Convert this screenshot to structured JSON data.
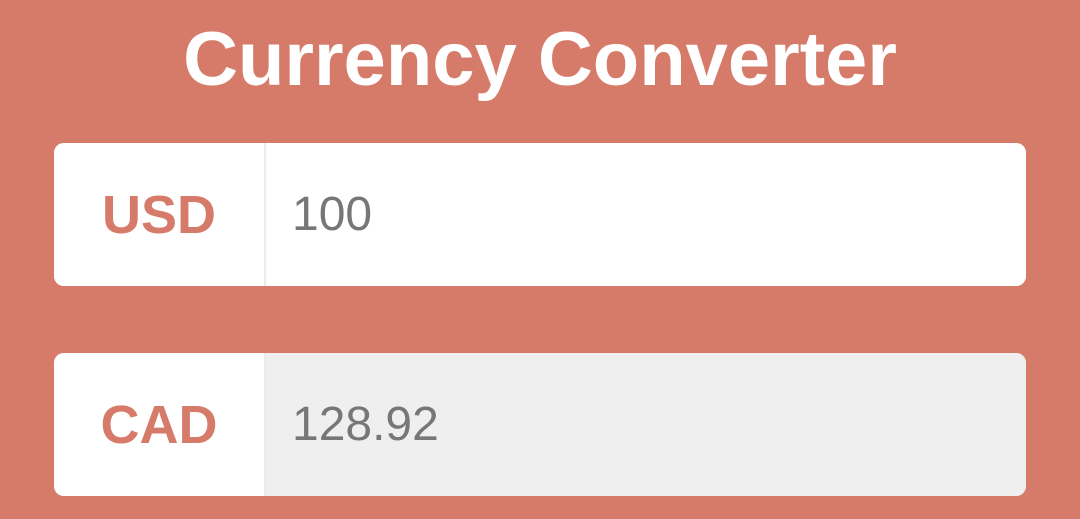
{
  "app": {
    "title": "Currency Converter",
    "accent_color": "#d67b69"
  },
  "converter": {
    "from": {
      "currency_code": "USD",
      "amount": "100"
    },
    "to": {
      "currency_code": "CAD",
      "amount": "128.92"
    }
  }
}
